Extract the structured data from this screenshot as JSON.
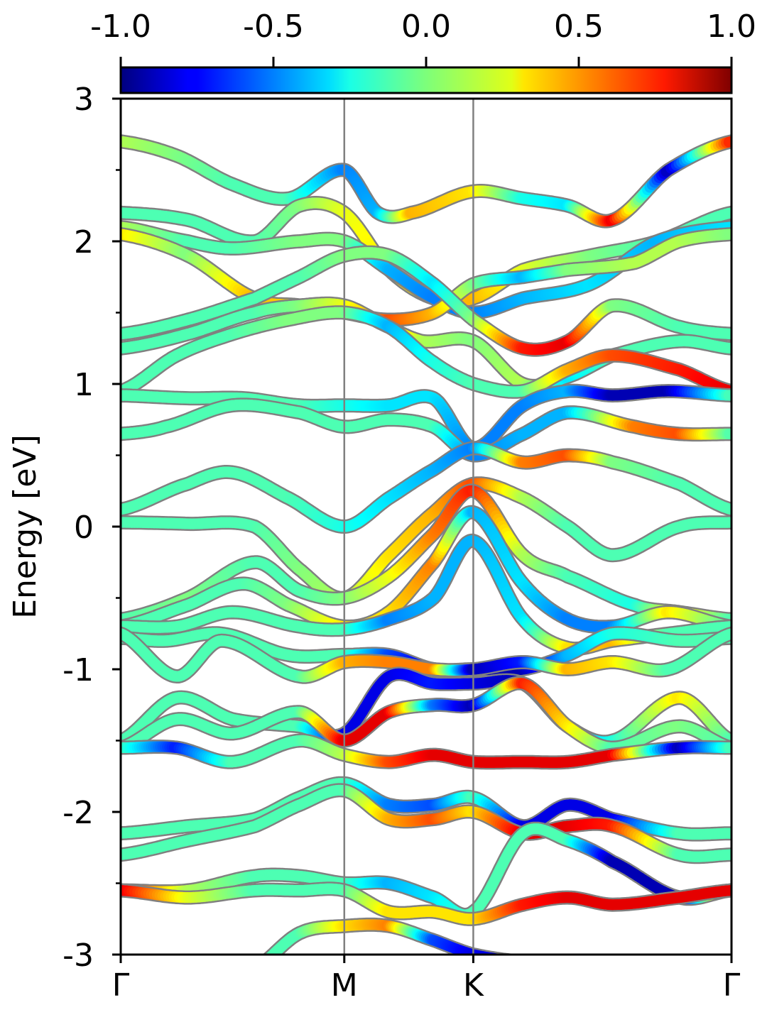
{
  "chart_data": {
    "type": "line",
    "subtype": "band-structure",
    "title": "",
    "ylabel": "Energy [eV]",
    "xlabel": "",
    "ylim": [
      -3,
      3
    ],
    "yticks": [
      "3",
      "2",
      "1",
      "0",
      "-1",
      "-2",
      "-3"
    ],
    "ytick_values": [
      3,
      2,
      1,
      0,
      -1,
      -2,
      -3
    ],
    "y_minor_ticks": [
      2.5,
      1.5,
      0.5,
      -0.5,
      -1.5,
      -2.5
    ],
    "kpath": {
      "labels": [
        "Γ",
        "M",
        "K",
        "Γ"
      ],
      "positions": [
        0,
        1,
        1.577,
        2.732
      ]
    },
    "colorbar": {
      "colormap": "jet",
      "range": [
        -1.0,
        1.0
      ],
      "ticks": [
        "-1.0",
        "-0.5",
        "0.0",
        "0.5",
        "1.0"
      ],
      "tick_values": [
        -1.0,
        -0.5,
        0.0,
        0.5,
        1.0
      ],
      "location": "top"
    },
    "grid": false,
    "series": [
      {
        "x": [
          0,
          0.25,
          0.5,
          0.75,
          1,
          1.15,
          1.3,
          1.577,
          1.8,
          2.0,
          2.2,
          2.45,
          2.732
        ],
        "y": [
          2.7,
          2.6,
          2.4,
          2.3,
          2.5,
          2.2,
          2.2,
          2.35,
          2.3,
          2.25,
          2.15,
          2.5,
          2.7
        ],
        "c": [
          0.1,
          0,
          -0.1,
          -0.1,
          -0.5,
          -0.4,
          0.4,
          0.3,
          -0.2,
          -0.3,
          0.8,
          -0.9,
          0.7
        ]
      },
      {
        "x": [
          0,
          0.3,
          0.6,
          0.8,
          1,
          1.2,
          1.4,
          1.577,
          1.8,
          2.1,
          2.4,
          2.732
        ],
        "y": [
          2.2,
          2.15,
          2.0,
          2.25,
          2.2,
          1.8,
          1.6,
          1.6,
          1.8,
          1.9,
          2.0,
          2.2
        ],
        "c": [
          -0.1,
          -0.1,
          -0.1,
          0,
          0.2,
          0.3,
          0.3,
          0.4,
          0.2,
          0,
          -0.1,
          -0.1
        ]
      },
      {
        "x": [
          0,
          0.3,
          0.5,
          0.8,
          1,
          1.2,
          1.4,
          1.577,
          1.8,
          2.1,
          2.4,
          2.732
        ],
        "y": [
          2.1,
          2.0,
          1.95,
          2.0,
          2.0,
          1.8,
          1.6,
          1.5,
          1.6,
          1.7,
          2.0,
          2.1
        ],
        "c": [
          0.1,
          -0.1,
          -0.1,
          0,
          0,
          -0.4,
          -0.5,
          -0.5,
          -0.4,
          -0.3,
          -0.4,
          -0.3
        ]
      },
      {
        "x": [
          0,
          0.3,
          0.6,
          0.8,
          1,
          1.2,
          1.4,
          1.577,
          1.8,
          2.0,
          2.3,
          2.5,
          2.732
        ],
        "y": [
          2.05,
          1.9,
          1.6,
          1.55,
          1.5,
          1.45,
          1.5,
          1.7,
          1.75,
          1.8,
          1.85,
          2.0,
          2.05
        ],
        "c": [
          0.3,
          0,
          0.4,
          0.3,
          0.2,
          0.6,
          0.4,
          0.0,
          -0.4,
          0,
          0.1,
          0.1,
          0.0
        ]
      },
      {
        "x": [
          0,
          0.3,
          0.6,
          0.8,
          1,
          1.2,
          1.4,
          1.577,
          1.8,
          2.0,
          2.2,
          2.5,
          2.732
        ],
        "y": [
          1.35,
          1.45,
          1.6,
          1.75,
          1.9,
          1.9,
          1.7,
          1.45,
          1.25,
          1.3,
          1.55,
          1.4,
          1.35
        ],
        "c": [
          -0.1,
          -0.1,
          -0.1,
          -0.1,
          0,
          0,
          -0.3,
          0.0,
          0.7,
          0.8,
          0,
          -0.1,
          -0.1
        ]
      },
      {
        "x": [
          0,
          0.3,
          0.6,
          0.8,
          1,
          1.2,
          1.35,
          1.577,
          1.8,
          2.0,
          2.2,
          2.5,
          2.732
        ],
        "y": [
          1.25,
          1.35,
          1.5,
          1.55,
          1.55,
          1.4,
          1.3,
          1.3,
          1.0,
          1.05,
          1.2,
          1.3,
          1.25
        ],
        "c": [
          -0.1,
          -0.1,
          -0.1,
          0,
          0.2,
          0.5,
          0.1,
          0.0,
          0.1,
          -0.3,
          -0.1,
          -0.1,
          -0.1
        ]
      },
      {
        "x": [
          0,
          0.25,
          0.5,
          0.75,
          1,
          1.2,
          1.4,
          1.577,
          1.8,
          2.0,
          2.2,
          2.5,
          2.732
        ],
        "y": [
          0.95,
          1.2,
          1.35,
          1.45,
          1.5,
          1.4,
          1.15,
          1.0,
          0.95,
          1.1,
          1.2,
          1.1,
          0.95
        ],
        "c": [
          -0.1,
          -0.1,
          -0.1,
          0,
          0.0,
          -0.4,
          -0.2,
          -0.1,
          -0.1,
          0.4,
          0.6,
          0.7,
          0.8
        ]
      },
      {
        "x": [
          0,
          0.3,
          0.55,
          0.8,
          1,
          1.2,
          1.4,
          1.577,
          1.8,
          2.0,
          2.2,
          2.45,
          2.732
        ],
        "y": [
          0.92,
          0.9,
          0.9,
          0.85,
          0.85,
          0.85,
          0.9,
          0.55,
          0.85,
          0.95,
          0.92,
          0.95,
          0.92
        ],
        "c": [
          -0.1,
          -0.1,
          -0.1,
          -0.1,
          -0.2,
          -0.3,
          -0.3,
          -0.5,
          -0.5,
          -0.4,
          -0.9,
          -0.9,
          -0.1
        ]
      },
      {
        "x": [
          0,
          0.2,
          0.5,
          0.8,
          1,
          1.2,
          1.4,
          1.577,
          1.8,
          2.0,
          2.3,
          2.5,
          2.732
        ],
        "y": [
          0.65,
          0.7,
          0.85,
          0.8,
          0.7,
          0.75,
          0.7,
          0.5,
          0.65,
          0.8,
          0.7,
          0.65,
          0.65
        ],
        "c": [
          -0.1,
          -0.1,
          -0.1,
          -0.1,
          -0.1,
          -0.1,
          -0.1,
          -0.5,
          -0.4,
          -0.4,
          0.5,
          0.6,
          -0.1
        ]
      },
      {
        "x": [
          0,
          0.3,
          0.5,
          0.75,
          1,
          1.2,
          1.4,
          1.577,
          1.8,
          2.0,
          2.2,
          2.5,
          2.732
        ],
        "y": [
          0.12,
          0.3,
          0.38,
          0.2,
          0.0,
          0.2,
          0.4,
          0.55,
          0.45,
          0.5,
          0.45,
          0.3,
          0.12
        ],
        "c": [
          -0.1,
          -0.1,
          -0.1,
          -0.1,
          -0.2,
          -0.3,
          -0.4,
          -0.5,
          0.5,
          0.6,
          0.0,
          -0.1,
          -0.1
        ]
      },
      {
        "x": [
          0,
          0.3,
          0.6,
          0.8,
          1,
          1.2,
          1.4,
          1.577,
          1.8,
          2.0,
          2.2,
          2.5,
          2.732
        ],
        "y": [
          0.03,
          0.02,
          0.0,
          -0.3,
          -0.5,
          -0.2,
          0.1,
          0.3,
          0.2,
          0.0,
          -0.2,
          0.0,
          0.03
        ],
        "c": [
          -0.1,
          -0.1,
          -0.1,
          0,
          0.1,
          0.3,
          0.4,
          0.6,
          0.1,
          -0.1,
          -0.1,
          -0.1,
          -0.1
        ]
      },
      {
        "x": [
          0,
          0.3,
          0.6,
          0.8,
          1,
          1.2,
          1.4,
          1.577,
          1.8,
          2.0,
          2.3,
          2.5,
          2.732
        ],
        "y": [
          -0.65,
          -0.5,
          -0.25,
          -0.45,
          -0.5,
          -0.35,
          -0.05,
          0.25,
          -0.2,
          -0.35,
          -0.55,
          -0.6,
          -0.65
        ],
        "c": [
          -0.1,
          0,
          -0.1,
          -0.1,
          0,
          0.2,
          0.5,
          0.7,
          0.1,
          -0.1,
          -0.2,
          0.3,
          -0.1
        ]
      },
      {
        "x": [
          0,
          0.3,
          0.55,
          0.75,
          1,
          1.2,
          1.4,
          1.577,
          1.8,
          2.0,
          2.2,
          2.45,
          2.732
        ],
        "y": [
          -0.7,
          -0.55,
          -0.4,
          -0.55,
          -0.7,
          -0.6,
          -0.25,
          0.1,
          -0.4,
          -0.65,
          -0.7,
          -0.6,
          -0.7
        ],
        "c": [
          -0.1,
          -0.1,
          -0.1,
          0,
          0.3,
          0.3,
          0.5,
          -0.4,
          -0.3,
          -0.5,
          -0.5,
          0.3,
          -0.1
        ]
      },
      {
        "x": [
          0,
          0.25,
          0.5,
          0.8,
          1,
          1.2,
          1.4,
          1.577,
          1.8,
          2.0,
          2.2,
          2.45,
          2.732
        ],
        "y": [
          -0.7,
          -0.7,
          -0.6,
          -0.7,
          -0.72,
          -0.65,
          -0.5,
          -0.1,
          -0.65,
          -0.85,
          -0.8,
          -0.75,
          -0.7
        ],
        "c": [
          -0.1,
          -0.1,
          -0.1,
          -0.1,
          -0.1,
          -0.5,
          -0.4,
          -0.4,
          -0.3,
          0.3,
          0.4,
          -0.1,
          -0.1
        ]
      },
      {
        "x": [
          0,
          0.2,
          0.45,
          0.75,
          1,
          1.2,
          1.4,
          1.577,
          1.8,
          2.0,
          2.2,
          2.5,
          2.732
        ],
        "y": [
          -0.78,
          -0.8,
          -0.75,
          -0.9,
          -0.9,
          -0.9,
          -1.0,
          -1.0,
          -1.0,
          -0.9,
          -0.75,
          -0.8,
          -0.78
        ],
        "c": [
          -0.1,
          -0.1,
          -0.1,
          -0.1,
          -0.1,
          -0.6,
          -0.8,
          -0.9,
          -0.9,
          -0.4,
          -0.2,
          -0.1,
          -0.1
        ]
      },
      {
        "x": [
          0,
          0.25,
          0.45,
          0.8,
          1,
          1.2,
          1.4,
          1.577,
          1.8,
          2.0,
          2.2,
          2.45,
          2.732
        ],
        "y": [
          -0.75,
          -1.05,
          -0.8,
          -1.05,
          -0.95,
          -0.95,
          -1.0,
          -1.0,
          -0.95,
          -1.0,
          -0.95,
          -1.0,
          -0.75
        ],
        "c": [
          -0.1,
          -0.1,
          -0.1,
          -0.1,
          0.4,
          0.5,
          0.5,
          -0.9,
          -0.7,
          0.4,
          0.3,
          -0.1,
          -0.1
        ]
      },
      {
        "x": [
          0,
          0.25,
          0.5,
          0.8,
          1,
          1.2,
          1.4,
          1.577,
          1.8,
          2.0,
          2.2,
          2.5,
          2.732
        ],
        "y": [
          -1.5,
          -1.2,
          -1.35,
          -1.4,
          -1.45,
          -1.05,
          -1.1,
          -1.1,
          -1.1,
          -1.4,
          -1.5,
          -1.2,
          -1.5
        ],
        "c": [
          -0.1,
          -0.1,
          -0.1,
          -0.1,
          -0.8,
          -0.8,
          -0.7,
          -0.8,
          -0.9,
          -0.5,
          -0.2,
          0.3,
          -0.1
        ]
      },
      {
        "x": [
          0,
          0.25,
          0.5,
          0.8,
          1,
          1.2,
          1.4,
          1.577,
          1.8,
          2.0,
          2.2,
          2.5,
          2.732
        ],
        "y": [
          -1.55,
          -1.35,
          -1.45,
          -1.3,
          -1.5,
          -1.3,
          -1.25,
          -1.25,
          -1.1,
          -1.4,
          -1.55,
          -1.4,
          -1.55
        ],
        "c": [
          -0.1,
          -0.1,
          -0.1,
          -0.1,
          0.8,
          0.8,
          -0.5,
          -0.9,
          0.7,
          0.3,
          -0.1,
          0.0,
          -0.1
        ]
      },
      {
        "x": [
          0,
          0.25,
          0.5,
          0.8,
          1,
          1.2,
          1.4,
          1.577,
          1.8,
          2.0,
          2.2,
          2.5,
          2.732
        ],
        "y": [
          -1.55,
          -1.55,
          -1.65,
          -1.5,
          -1.6,
          -1.65,
          -1.6,
          -1.65,
          -1.65,
          -1.65,
          -1.6,
          -1.55,
          -1.55
        ],
        "c": [
          -0.1,
          -0.7,
          -0.1,
          -0.1,
          0.1,
          0.6,
          0.8,
          0.8,
          0.8,
          0.8,
          0.8,
          -0.9,
          -0.1
        ]
      },
      {
        "x": [
          0,
          0.3,
          0.6,
          0.8,
          1,
          1.2,
          1.4,
          1.577,
          1.8,
          2.0,
          2.2,
          2.5,
          2.732
        ],
        "y": [
          -2.15,
          -2.1,
          -2.05,
          -1.9,
          -1.8,
          -1.95,
          -1.95,
          -1.9,
          -2.1,
          -1.95,
          -2.05,
          -2.15,
          -2.15
        ],
        "c": [
          -0.1,
          -0.1,
          -0.1,
          -0.1,
          -0.1,
          -0.5,
          -0.6,
          -0.1,
          -0.8,
          -0.8,
          -0.8,
          -0.1,
          -0.1
        ]
      },
      {
        "x": [
          0,
          0.3,
          0.6,
          0.8,
          1,
          1.2,
          1.4,
          1.577,
          1.8,
          2.0,
          2.2,
          2.5,
          2.732
        ],
        "y": [
          -2.3,
          -2.2,
          -2.1,
          -1.95,
          -1.85,
          -2.05,
          -2.05,
          -2.0,
          -2.15,
          -2.1,
          -2.1,
          -2.3,
          -2.3
        ],
        "c": [
          -0.1,
          -0.1,
          -0.1,
          -0.1,
          -0.1,
          0.4,
          0.6,
          0.3,
          0.8,
          0.8,
          0.7,
          -0.1,
          -0.1
        ]
      },
      {
        "x": [
          0,
          0.3,
          0.6,
          0.8,
          1,
          1.2,
          1.4,
          1.577,
          1.8,
          2.0,
          2.2,
          2.5,
          2.732
        ],
        "y": [
          -2.55,
          -2.55,
          -2.45,
          -2.45,
          -2.5,
          -2.5,
          -2.6,
          -2.7,
          -2.15,
          -2.2,
          -2.35,
          -2.6,
          -2.55
        ],
        "c": [
          0.8,
          0.1,
          -0.1,
          -0.1,
          -0.1,
          -0.4,
          -0.3,
          -0.1,
          -0.1,
          -0.1,
          -0.9,
          -0.9,
          0.8
        ]
      },
      {
        "x": [
          0,
          0.3,
          0.6,
          0.8,
          1,
          1.2,
          1.4,
          1.577,
          1.8,
          2.0,
          2.2,
          2.5,
          2.732
        ],
        "y": [
          -2.55,
          -2.6,
          -2.55,
          -2.55,
          -2.55,
          -2.7,
          -2.7,
          -2.75,
          -2.65,
          -2.6,
          -2.65,
          -2.6,
          -2.55
        ],
        "c": [
          0.8,
          0.2,
          -0.1,
          -0.1,
          -0.1,
          0.3,
          0.3,
          0.3,
          0.7,
          0.8,
          0.8,
          0.8,
          0.8
        ]
      },
      {
        "x": [
          0,
          0.3,
          0.6,
          0.8,
          1,
          1.2,
          1.4,
          1.577,
          1.8
        ],
        "y": [
          -3.05,
          -3.2,
          -3.1,
          -2.85,
          -2.8,
          -2.8,
          -2.9,
          -3.0,
          -3.05
        ],
        "c": [
          0.8,
          -0.1,
          -0.1,
          -0.1,
          0.3,
          0.5,
          -0.6,
          -0.8,
          -0.8
        ]
      }
    ]
  }
}
